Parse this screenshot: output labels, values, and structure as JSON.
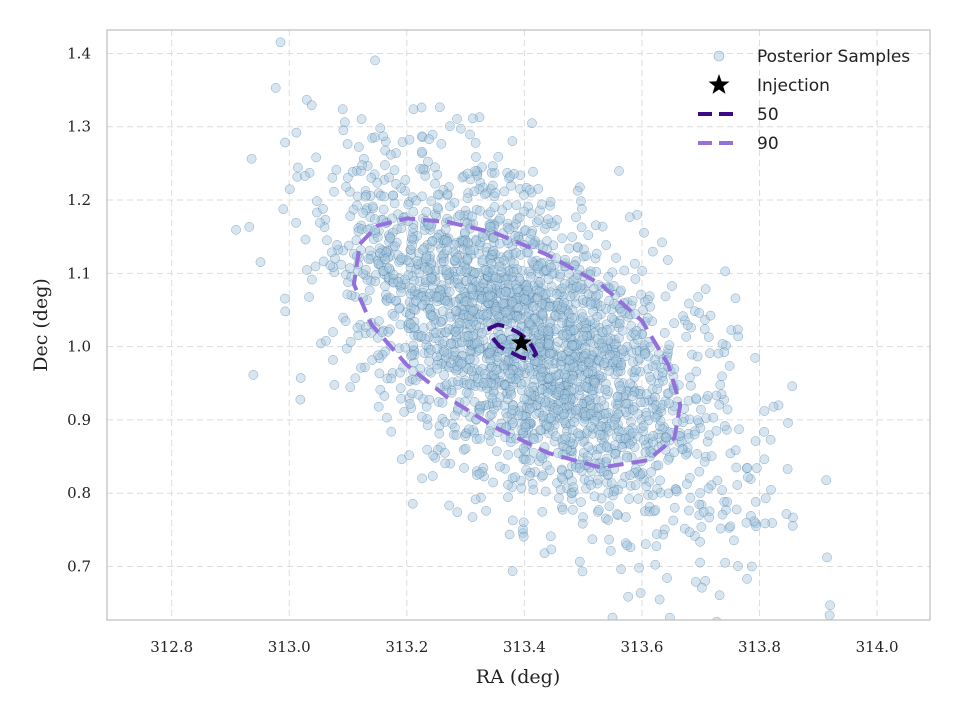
{
  "chart_data": {
    "type": "scatter",
    "xlabel": "RA (deg)",
    "ylabel": "Dec (deg)",
    "xlim": [
      312.69,
      314.09
    ],
    "ylim": [
      0.627,
      1.432
    ],
    "xticks": [
      312.8,
      313.0,
      313.2,
      313.4,
      313.6,
      313.8,
      314.0
    ],
    "xtick_labels": [
      "312.8",
      "313.0",
      "313.2",
      "313.4",
      "313.6",
      "313.8",
      "314.0"
    ],
    "yticks": [
      0.7,
      0.8,
      0.9,
      1.0,
      1.1,
      1.2,
      1.3,
      1.4
    ],
    "ytick_labels": [
      "0.7",
      "0.8",
      "0.9",
      "1.0",
      "1.1",
      "1.2",
      "1.3",
      "1.4"
    ],
    "grid": true,
    "legend_position": "top-right",
    "legend": [
      {
        "label": "Posterior Samples",
        "marker": "circle",
        "color": "#a9c8dc"
      },
      {
        "label": "Injection",
        "marker": "star",
        "color": "#000000"
      },
      {
        "label": "50",
        "marker": "dashed-line",
        "color": "#3d0a85"
      },
      {
        "label": "90",
        "marker": "dashed-line",
        "color": "#9370db"
      }
    ],
    "scatter_style": {
      "fill": "#a3c6dd",
      "stroke": "#3a6e96",
      "opacity": 0.45
    },
    "posterior_samples": {
      "n": 2600,
      "mean": [
        313.405,
        1.005
      ],
      "sd": [
        0.165,
        0.122
      ],
      "correlation": -0.58,
      "seed": 7
    },
    "injection": {
      "ra": 313.395,
      "dec": 1.005
    },
    "contours": [
      {
        "level": "50",
        "color": "#3d0a85",
        "center": [
          313.385,
          1.005
        ],
        "ra": [
          313.34,
          313.355,
          313.37,
          313.388,
          313.405,
          313.415,
          313.42,
          313.41,
          313.395,
          313.375,
          313.358,
          313.345,
          313.34
        ],
        "dec": [
          1.025,
          1.03,
          1.027,
          1.02,
          1.01,
          0.998,
          0.99,
          0.983,
          0.985,
          0.993,
          1.0,
          1.013,
          1.025
        ]
      },
      {
        "level": "90",
        "color": "#9370db",
        "center": [
          313.405,
          1.005
        ],
        "ra": [
          313.12,
          313.15,
          313.2,
          313.27,
          313.35,
          313.44,
          313.53,
          313.6,
          313.645,
          313.665,
          313.655,
          313.61,
          313.53,
          313.44,
          313.35,
          313.27,
          313.2,
          313.14,
          313.11,
          313.12
        ],
        "dec": [
          1.14,
          1.165,
          1.175,
          1.17,
          1.155,
          1.125,
          1.085,
          1.035,
          0.975,
          0.92,
          0.875,
          0.845,
          0.835,
          0.855,
          0.89,
          0.93,
          0.975,
          1.03,
          1.085,
          1.14
        ]
      }
    ]
  }
}
